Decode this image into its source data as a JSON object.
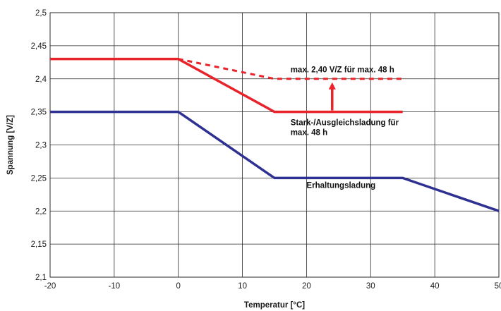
{
  "chart_data": {
    "type": "line",
    "title": "",
    "xlabel": "Temperatur [°C]",
    "ylabel": "Spannung [V/Z]",
    "xlim": [
      -20,
      50
    ],
    "ylim": [
      2.1,
      2.5
    ],
    "x_ticks": [
      -20,
      -10,
      0,
      10,
      20,
      30,
      40,
      50
    ],
    "x_tick_labels": [
      "-20",
      "-10",
      "0",
      "10",
      "20",
      "30",
      "40",
      "50"
    ],
    "y_ticks": [
      2.1,
      2.15,
      2.2,
      2.25,
      2.3,
      2.35,
      2.4,
      2.45,
      2.5
    ],
    "y_tick_labels": [
      "2,1",
      "2,15",
      "2,2",
      "2,25",
      "2,3",
      "2,35",
      "2,4",
      "2,45",
      "2,5"
    ],
    "grid": true,
    "legend": "none",
    "series": [
      {
        "id": "stark",
        "color": "#e8232a",
        "style": "solid",
        "points": [
          [
            -20,
            2.43
          ],
          [
            0,
            2.43
          ],
          [
            15,
            2.35
          ],
          [
            35,
            2.35
          ]
        ]
      },
      {
        "id": "max",
        "color": "#e8232a",
        "style": "dashed",
        "points": [
          [
            0,
            2.43
          ],
          [
            15,
            2.4
          ],
          [
            35,
            2.4
          ]
        ]
      },
      {
        "id": "erhaltung",
        "color": "#2e3192",
        "style": "solid",
        "points": [
          [
            -20,
            2.35
          ],
          [
            0,
            2.35
          ],
          [
            15,
            2.25
          ],
          [
            35,
            2.25
          ],
          [
            50,
            2.2
          ]
        ]
      }
    ],
    "arrow": {
      "color": "#e8232a",
      "from": [
        24,
        2.35
      ],
      "to": [
        24,
        2.4
      ]
    },
    "annotations": [
      {
        "id": "max-label",
        "lines": [
          "max. 2,40 V/Z für max. 48 h"
        ],
        "x": 17.5,
        "y": 2.41
      },
      {
        "id": "stark-label",
        "lines": [
          "Stark-/Ausgleichsladung für",
          "max. 48 h"
        ],
        "x": 17.5,
        "y": 2.33
      },
      {
        "id": "erhaltung-label",
        "lines": [
          "Erhaltungsladung"
        ],
        "x": 20,
        "y": 2.235
      }
    ]
  }
}
